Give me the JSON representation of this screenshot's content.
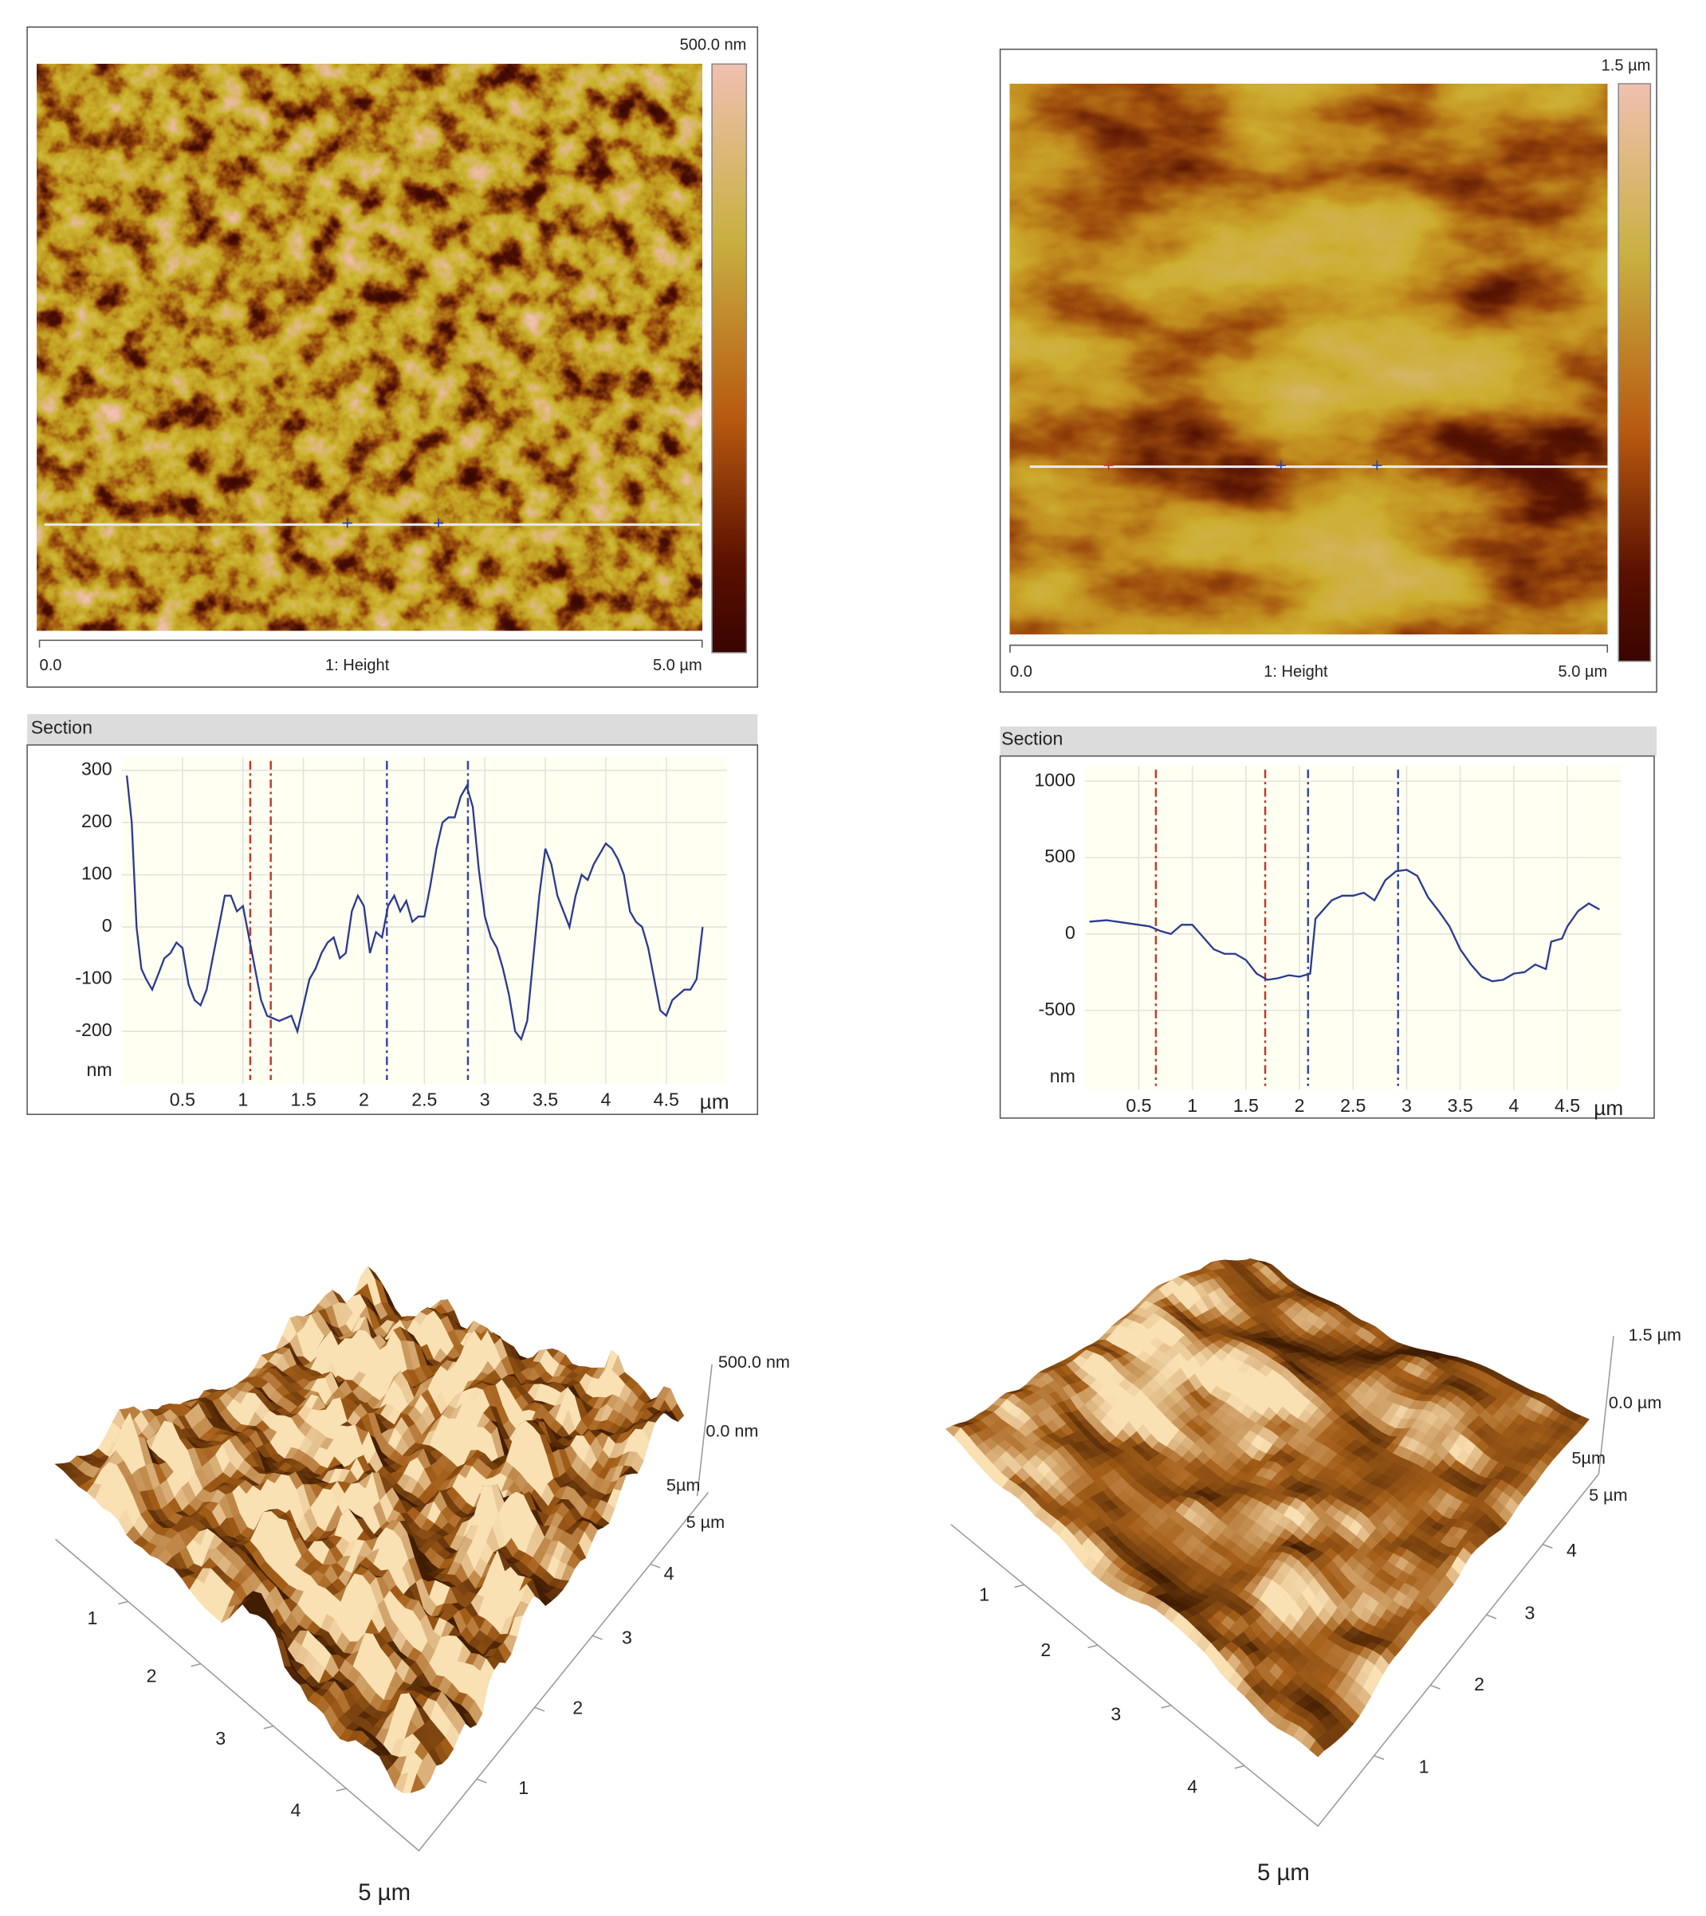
{
  "panels": [
    {
      "scale_max": "500.0 nm",
      "x_start": "0.0",
      "channel": "1: Height",
      "x_end": "5.0 µm"
    },
    {
      "scale_max": "1.5 µm",
      "x_start": "0.0",
      "channel": "1: Height",
      "x_end": "5.0 µm"
    }
  ],
  "chart_data": [
    {
      "type": "line",
      "title": "Section",
      "x_label": "µm",
      "y_label": "nm",
      "color": "#2b3a8f",
      "x": [
        0.04,
        0.08,
        0.12,
        0.16,
        0.2,
        0.25,
        0.3,
        0.35,
        0.4,
        0.45,
        0.5,
        0.55,
        0.6,
        0.65,
        0.7,
        0.75,
        0.8,
        0.85,
        0.9,
        0.95,
        1.0,
        1.05,
        1.1,
        1.15,
        1.2,
        1.3,
        1.4,
        1.45,
        1.5,
        1.55,
        1.6,
        1.65,
        1.7,
        1.75,
        1.8,
        1.85,
        1.9,
        1.95,
        2.0,
        2.05,
        2.1,
        2.15,
        2.2,
        2.25,
        2.3,
        2.35,
        2.4,
        2.45,
        2.5,
        2.55,
        2.6,
        2.65,
        2.7,
        2.75,
        2.8,
        2.85,
        2.9,
        2.95,
        3.0,
        3.05,
        3.1,
        3.15,
        3.2,
        3.25,
        3.3,
        3.35,
        3.4,
        3.45,
        3.5,
        3.55,
        3.6,
        3.65,
        3.7,
        3.75,
        3.8,
        3.85,
        3.9,
        3.95,
        4.0,
        4.05,
        4.1,
        4.15,
        4.2,
        4.25,
        4.3,
        4.35,
        4.4,
        4.45,
        4.5,
        4.55,
        4.6,
        4.65,
        4.7,
        4.75,
        4.8
      ],
      "values": [
        290,
        200,
        0,
        -80,
        -100,
        -120,
        -90,
        -60,
        -50,
        -30,
        -40,
        -110,
        -140,
        -150,
        -120,
        -60,
        0,
        60,
        60,
        30,
        40,
        -20,
        -80,
        -140,
        -170,
        -180,
        -170,
        -200,
        -150,
        -100,
        -80,
        -50,
        -30,
        -20,
        -60,
        -50,
        30,
        60,
        40,
        -50,
        -10,
        -20,
        40,
        60,
        30,
        50,
        10,
        20,
        20,
        80,
        150,
        200,
        210,
        210,
        250,
        270,
        230,
        110,
        20,
        -20,
        -40,
        -80,
        -130,
        -200,
        -215,
        -180,
        -60,
        60,
        150,
        120,
        60,
        30,
        0,
        60,
        100,
        90,
        120,
        140,
        160,
        150,
        130,
        100,
        30,
        10,
        0,
        -40,
        -100,
        -160,
        -170,
        -140,
        -130,
        -120,
        -120,
        -100,
        0
      ],
      "cursors": [
        {
          "x": 1.06,
          "color": "#c0392b"
        },
        {
          "x": 1.23,
          "color": "#c0392b"
        },
        {
          "x": 2.19,
          "color": "#3344aa"
        },
        {
          "x": 2.86,
          "color": "#3344aa"
        }
      ],
      "xlim": [
        0,
        5
      ],
      "ylim": [
        -300,
        325
      ],
      "xticks": [
        0.5,
        1,
        1.5,
        2,
        2.5,
        3,
        3.5,
        4,
        4.5
      ],
      "yticks": [
        -200,
        -100,
        0,
        100,
        200,
        300
      ],
      "grid": true
    },
    {
      "type": "line",
      "title": "Section",
      "x_label": "µm",
      "y_label": "nm",
      "color": "#2b3a8f",
      "x": [
        0.04,
        0.2,
        0.4,
        0.6,
        0.7,
        0.8,
        0.9,
        1.0,
        1.1,
        1.2,
        1.3,
        1.4,
        1.5,
        1.6,
        1.7,
        1.8,
        1.9,
        2.0,
        2.1,
        2.15,
        2.3,
        2.4,
        2.5,
        2.6,
        2.7,
        2.8,
        2.9,
        3.0,
        3.1,
        3.2,
        3.3,
        3.4,
        3.5,
        3.6,
        3.7,
        3.8,
        3.9,
        4.0,
        4.1,
        4.2,
        4.3,
        4.35,
        4.45,
        4.5,
        4.6,
        4.7,
        4.8
      ],
      "values": [
        80,
        90,
        70,
        50,
        20,
        0,
        60,
        60,
        -20,
        -100,
        -130,
        -130,
        -170,
        -260,
        -300,
        -290,
        -270,
        -280,
        -260,
        100,
        220,
        250,
        250,
        270,
        220,
        350,
        410,
        420,
        380,
        240,
        150,
        50,
        -100,
        -200,
        -280,
        -310,
        -300,
        -260,
        -250,
        -200,
        -230,
        -50,
        -30,
        50,
        150,
        200,
        160
      ],
      "cursors": [
        {
          "x": 0.66,
          "color": "#c0392b"
        },
        {
          "x": 1.68,
          "color": "#c0392b"
        },
        {
          "x": 2.08,
          "color": "#3344aa"
        },
        {
          "x": 2.92,
          "color": "#3344aa"
        }
      ],
      "xlim": [
        0,
        5
      ],
      "ylim": [
        -1020,
        1100
      ],
      "xticks": [
        0.5,
        1,
        1.5,
        2,
        2.5,
        3,
        3.5,
        4,
        4.5
      ],
      "yticks": [
        -500,
        0,
        500,
        1000
      ],
      "grid": true
    }
  ],
  "surfaces": [
    {
      "z_max": "500.0 nm",
      "z_zero": "0.0 nm",
      "side_end": "5µm",
      "corner_end": "5 µm",
      "left_ticks": [
        "1",
        "2",
        "3",
        "4"
      ],
      "right_ticks": [
        "1",
        "2",
        "3",
        "4"
      ],
      "front_end": "5 µm"
    },
    {
      "z_max": "1.5 µm",
      "z_zero": "0.0 µm",
      "side_end": "5µm",
      "corner_end": "5 µm",
      "left_ticks": [
        "1",
        "2",
        "3",
        "4"
      ],
      "right_ticks": [
        "1",
        "2",
        "3",
        "4"
      ],
      "front_end": "5 µm"
    }
  ]
}
